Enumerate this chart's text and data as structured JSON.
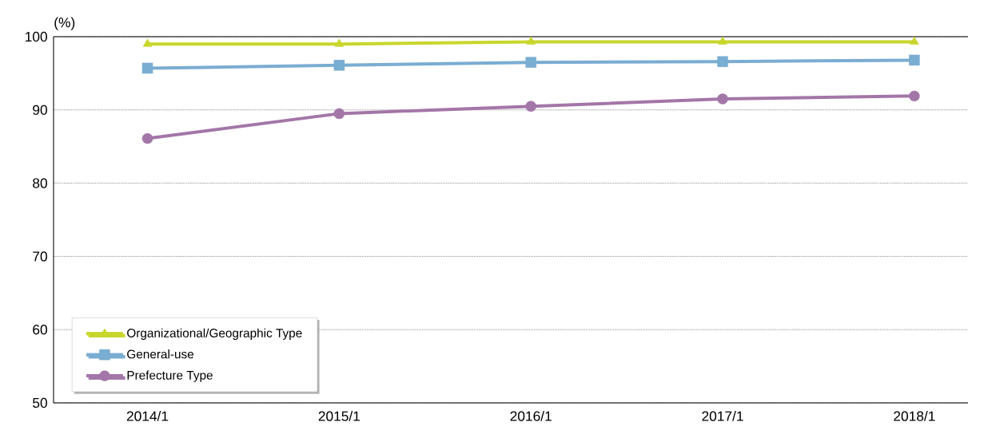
{
  "chart_data": {
    "type": "line",
    "ylabel": "(%)",
    "categories": [
      "2014/1",
      "2015/1",
      "2016/1",
      "2017/1",
      "2018/1"
    ],
    "series": [
      {
        "name": "Organizational/Geographic Type",
        "color": "#c8d62b",
        "marker": "triangle",
        "values": [
          99.0,
          99.0,
          99.3,
          99.3,
          99.3
        ]
      },
      {
        "name": "General-use",
        "color": "#7aadd2",
        "marker": "square",
        "values": [
          95.7,
          96.1,
          96.5,
          96.6,
          96.8
        ]
      },
      {
        "name": "Prefecture Type",
        "color": "#a376a8",
        "marker": "circle",
        "values": [
          86.1,
          89.5,
          90.5,
          91.5,
          91.9
        ]
      }
    ],
    "ylim": [
      50,
      100
    ],
    "yticks": [
      50,
      60,
      70,
      80,
      90,
      100
    ],
    "grid": "y",
    "legend": "bottom left",
    "line_style": "solid"
  }
}
